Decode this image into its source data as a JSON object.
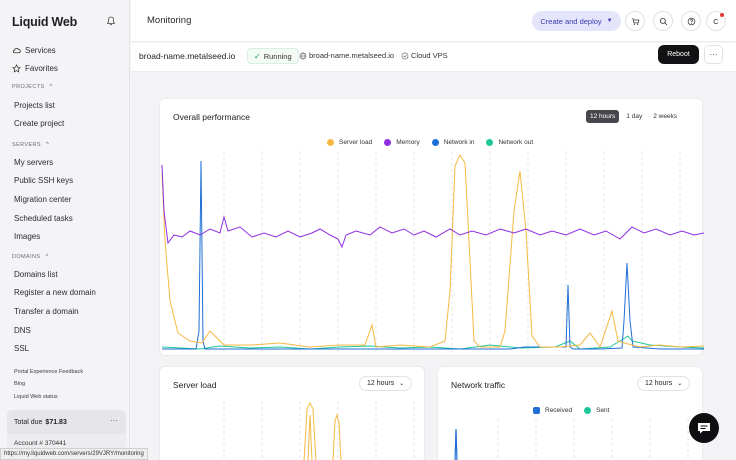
{
  "brand": "Liquid Web",
  "sidebar": {
    "top_items": [
      {
        "label": "Services",
        "icon": "cloud-icon"
      },
      {
        "label": "Favorites",
        "icon": "star-icon"
      }
    ],
    "projects_heading": "PROJECTS",
    "projects": [
      "Projects list",
      "Create project"
    ],
    "servers_heading": "SERVERS",
    "servers": [
      "My servers",
      "Public SSH keys",
      "Migration center",
      "Scheduled tasks",
      "Images"
    ],
    "domains_heading": "DOMAINS",
    "domains": [
      "Domains list",
      "Register a new domain",
      "Transfer a domain",
      "DNS",
      "SSL"
    ],
    "footer_links": [
      "Portal Experience Feedback",
      "Blog",
      "Liquid Web status"
    ],
    "total_due_label": "Total due",
    "total_due_value": "$71.83",
    "account_label": "Account # 370441"
  },
  "header": {
    "title": "Monitoring",
    "cta_label": "Create and deploy",
    "avatar_initial": "C"
  },
  "server": {
    "name": "broad-name.metalseed.io",
    "status": "Running",
    "hostname": "broad-name.metalseed.io",
    "type": "Cloud VPS",
    "reboot_label": "Reboot"
  },
  "overall": {
    "title": "Overall performance",
    "ranges": [
      "12 hours",
      "1 day",
      "2 weeks"
    ],
    "active_range": 0,
    "legend": [
      {
        "name": "Server load",
        "color": "#f5b942"
      },
      {
        "name": "Memory",
        "color": "#8e2de2"
      },
      {
        "name": "Network in",
        "color": "#1f6fd6"
      },
      {
        "name": "Network out",
        "color": "#1fc69a"
      }
    ]
  },
  "server_load_card": {
    "title": "Server load",
    "range": "12 hours"
  },
  "network_card": {
    "title": "Network traffic",
    "range": "12 hours",
    "legend": [
      {
        "name": "Received",
        "color": "#1f6fd6"
      },
      {
        "name": "Sent",
        "color": "#1fc69a"
      }
    ]
  },
  "status_url": "https://my.liquidweb.com/servers/29VJRY/monitoring"
}
